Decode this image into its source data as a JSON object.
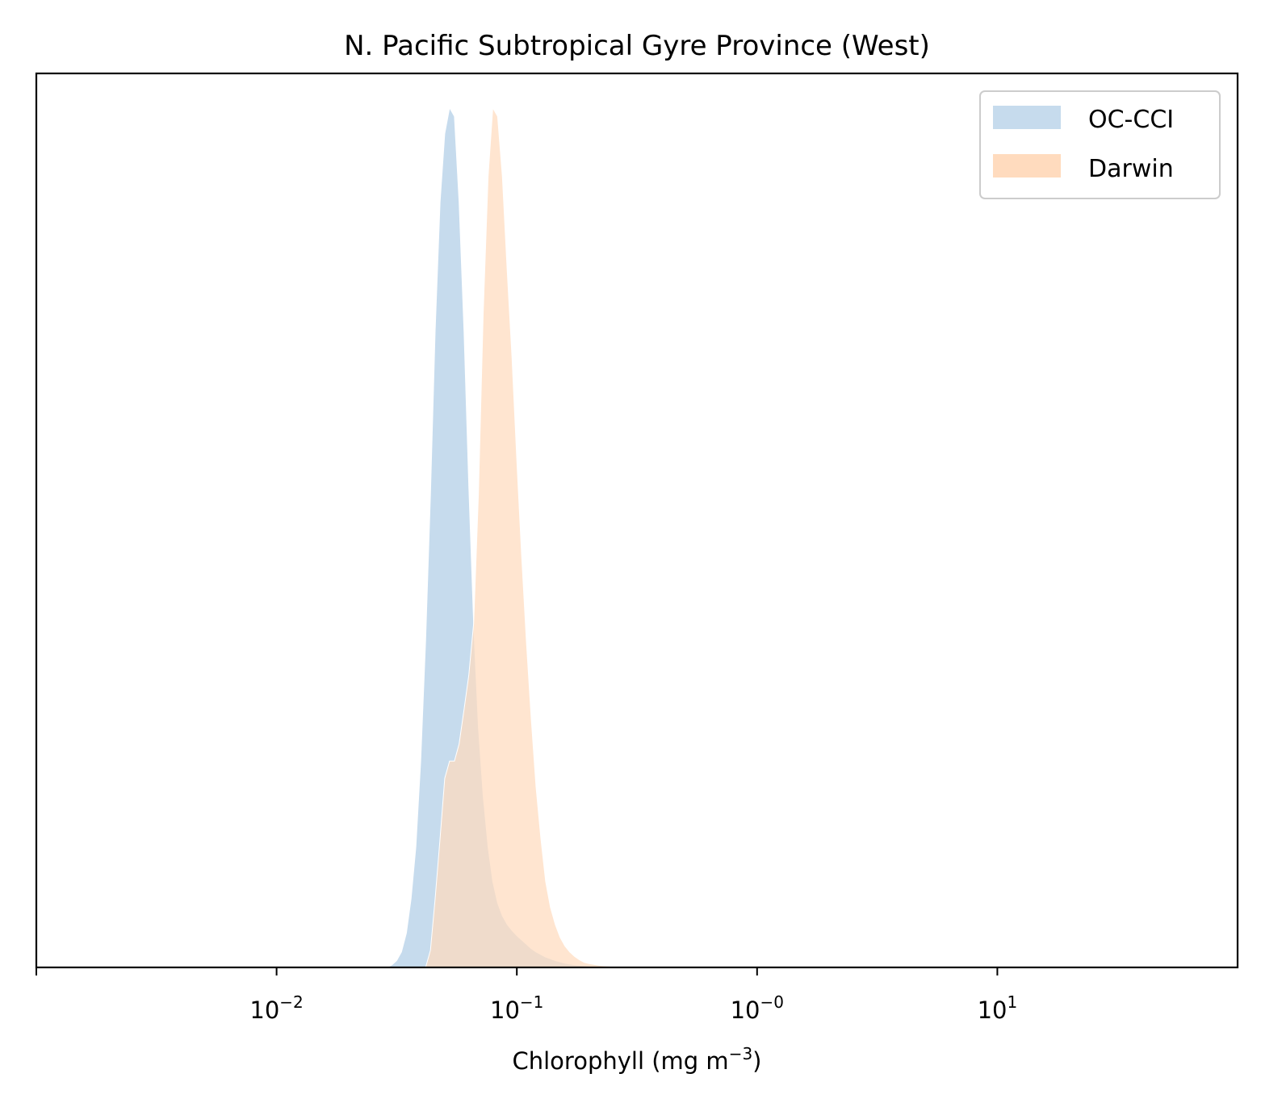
{
  "chart_data": {
    "type": "area",
    "title": "N. Pacific Subtropical Gyre Province (West)",
    "xlabel": {
      "main": "Chlorophyll  (mg m",
      "sup": "−3",
      "close": ")"
    },
    "ylabel": "",
    "xscale": "log",
    "xlim": [
      0.001,
      100
    ],
    "ylim": [
      0,
      1.04
    ],
    "grid": false,
    "y_ticks_visible": false,
    "legend_position": "top-right",
    "x_ticks": [
      {
        "value": 0.001,
        "base": "",
        "exp": ""
      },
      {
        "value": 0.01,
        "base": "10",
        "exp": "−2"
      },
      {
        "value": 0.1,
        "base": "10",
        "exp": "−1"
      },
      {
        "value": 1,
        "base": "10",
        "exp": "−0"
      },
      {
        "value": 10,
        "base": "10",
        "exp": "1"
      }
    ],
    "series": [
      {
        "name": "OC-CCI",
        "color": "#c6dbed",
        "points": [
          [
            0.0288,
            0.0
          ],
          [
            0.0302,
            0.003
          ],
          [
            0.0316,
            0.008
          ],
          [
            0.0331,
            0.018
          ],
          [
            0.0347,
            0.04
          ],
          [
            0.0363,
            0.08
          ],
          [
            0.038,
            0.14
          ],
          [
            0.0398,
            0.24
          ],
          [
            0.0417,
            0.38
          ],
          [
            0.0437,
            0.55
          ],
          [
            0.0457,
            0.74
          ],
          [
            0.0479,
            0.89
          ],
          [
            0.0501,
            0.97
          ],
          [
            0.0525,
            1.0
          ],
          [
            0.055,
            0.99
          ],
          [
            0.0575,
            0.89
          ],
          [
            0.0603,
            0.74
          ],
          [
            0.0631,
            0.56
          ],
          [
            0.0661,
            0.4
          ],
          [
            0.0692,
            0.28
          ],
          [
            0.0724,
            0.2
          ],
          [
            0.0759,
            0.14
          ],
          [
            0.0794,
            0.1
          ],
          [
            0.0832,
            0.075
          ],
          [
            0.0871,
            0.06
          ],
          [
            0.0912,
            0.05
          ],
          [
            0.0955,
            0.043
          ],
          [
            0.1,
            0.037
          ],
          [
            0.1047,
            0.032
          ],
          [
            0.1096,
            0.027
          ],
          [
            0.1148,
            0.022
          ],
          [
            0.1202,
            0.018
          ],
          [
            0.1259,
            0.015
          ],
          [
            0.1318,
            0.012
          ],
          [
            0.138,
            0.01
          ],
          [
            0.1445,
            0.008
          ],
          [
            0.1514,
            0.0065
          ],
          [
            0.1585,
            0.005
          ],
          [
            0.166,
            0.004
          ],
          [
            0.1738,
            0.003
          ],
          [
            0.1905,
            0.002
          ],
          [
            0.2089,
            0.001
          ],
          [
            0.2291,
            0.0
          ],
          [
            0.2512,
            0.0
          ]
        ]
      },
      {
        "name": "Darwin",
        "color": "#ffdbbe",
        "points": [
          [
            0.0417,
            0.0
          ],
          [
            0.0437,
            0.02
          ],
          [
            0.0457,
            0.08
          ],
          [
            0.0479,
            0.15
          ],
          [
            0.0501,
            0.22
          ],
          [
            0.0525,
            0.24
          ],
          [
            0.055,
            0.24
          ],
          [
            0.0575,
            0.26
          ],
          [
            0.0603,
            0.3
          ],
          [
            0.0631,
            0.34
          ],
          [
            0.0661,
            0.4
          ],
          [
            0.0692,
            0.55
          ],
          [
            0.0724,
            0.76
          ],
          [
            0.0759,
            0.92
          ],
          [
            0.0794,
            1.0
          ],
          [
            0.0832,
            0.99
          ],
          [
            0.0871,
            0.92
          ],
          [
            0.0912,
            0.81
          ],
          [
            0.0955,
            0.71
          ],
          [
            0.1,
            0.59
          ],
          [
            0.1047,
            0.48
          ],
          [
            0.1096,
            0.38
          ],
          [
            0.1148,
            0.29
          ],
          [
            0.1202,
            0.21
          ],
          [
            0.1259,
            0.15
          ],
          [
            0.1318,
            0.1
          ],
          [
            0.138,
            0.07
          ],
          [
            0.1445,
            0.05
          ],
          [
            0.1514,
            0.035
          ],
          [
            0.1585,
            0.025
          ],
          [
            0.166,
            0.018
          ],
          [
            0.1738,
            0.013
          ],
          [
            0.182,
            0.009
          ],
          [
            0.1905,
            0.006
          ],
          [
            0.1995,
            0.0045
          ],
          [
            0.2089,
            0.0035
          ],
          [
            0.2188,
            0.0025
          ],
          [
            0.2291,
            0.002
          ],
          [
            0.2512,
            0.0012
          ],
          [
            0.2754,
            0.0006
          ],
          [
            0.302,
            0.0002
          ],
          [
            0.3311,
            0.0
          ]
        ]
      }
    ]
  }
}
